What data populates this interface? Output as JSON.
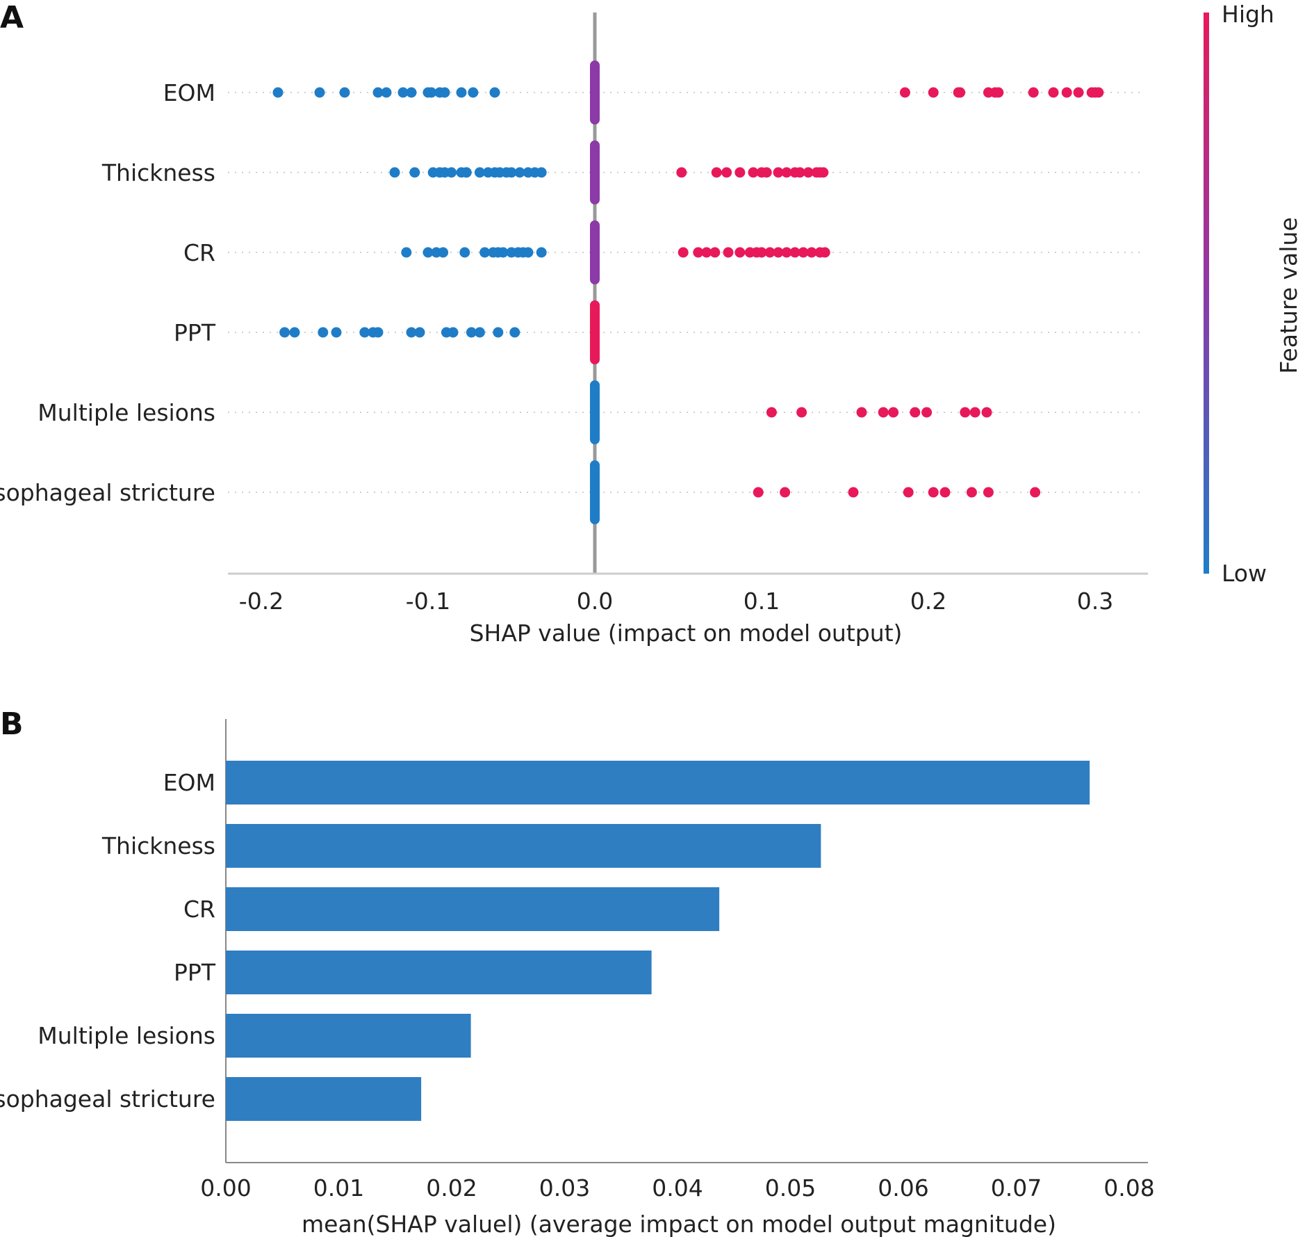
{
  "chart_data": [
    {
      "panel": "A",
      "type": "scatter",
      "subtype": "shap-beeswarm",
      "xlabel": "SHAP value (impact on model output)",
      "xlim": [
        -0.2,
        0.3
      ],
      "xticks": [
        "-0.2",
        "-0.1",
        "0.0",
        "0.1",
        "0.2",
        "0.3"
      ],
      "xtick_values": [
        -0.2,
        -0.1,
        0.0,
        0.1,
        0.2,
        0.3
      ],
      "colorbar": {
        "high_label": "High",
        "low_label": "Low",
        "title": "Feature value",
        "high_color": "#e8195a",
        "low_color": "#1f7dc8",
        "mid_color": "#8b3aa8"
      },
      "features": [
        {
          "name": "EOM",
          "zero_color": "mid",
          "low_points": [
            -0.19,
            -0.165,
            -0.15,
            -0.13,
            -0.125,
            -0.115,
            -0.11,
            -0.1,
            -0.098,
            -0.093,
            -0.09,
            -0.08,
            -0.073,
            -0.06
          ],
          "high_points": [
            0.186,
            0.203,
            0.218,
            0.219,
            0.236,
            0.24,
            0.242,
            0.263,
            0.275,
            0.283,
            0.29,
            0.298,
            0.3,
            0.302
          ]
        },
        {
          "name": "Thickness",
          "zero_color": "mid",
          "low_points": [
            -0.12,
            -0.108,
            -0.097,
            -0.093,
            -0.09,
            -0.086,
            -0.08,
            -0.077,
            -0.077,
            -0.069,
            -0.064,
            -0.06,
            -0.057,
            -0.053,
            -0.05,
            -0.045,
            -0.04,
            -0.036,
            -0.032
          ],
          "high_points": [
            0.052,
            0.073,
            0.079,
            0.087,
            0.095,
            0.1,
            0.103,
            0.11,
            0.115,
            0.12,
            0.123,
            0.128,
            0.133,
            0.135,
            0.137
          ]
        },
        {
          "name": "CR",
          "zero_color": "mid",
          "low_points": [
            -0.113,
            -0.1,
            -0.095,
            -0.091,
            -0.078,
            -0.066,
            -0.061,
            -0.058,
            -0.055,
            -0.05,
            -0.046,
            -0.043,
            -0.04,
            -0.032
          ],
          "high_points": [
            0.053,
            0.062,
            0.067,
            0.072,
            0.08,
            0.087,
            0.093,
            0.097,
            0.1,
            0.105,
            0.11,
            0.115,
            0.12,
            0.125,
            0.13,
            0.135,
            0.138
          ]
        },
        {
          "name": "PPT",
          "zero_color": "high",
          "low_points": [
            -0.186,
            -0.18,
            -0.163,
            -0.155,
            -0.138,
            -0.133,
            -0.13,
            -0.11,
            -0.105,
            -0.089,
            -0.085,
            -0.074,
            -0.069,
            -0.058,
            -0.048
          ],
          "high_points": []
        },
        {
          "name": "Multiple lesions",
          "zero_color": "low",
          "low_points": [],
          "high_points": [
            0.106,
            0.124,
            0.16,
            0.173,
            0.179,
            0.192,
            0.199,
            0.222,
            0.228,
            0.235
          ]
        },
        {
          "name": "Esophageal stricture",
          "zero_color": "low",
          "low_points": [],
          "high_points": [
            0.098,
            0.114,
            0.155,
            0.188,
            0.203,
            0.21,
            0.226,
            0.236,
            0.264
          ]
        }
      ]
    },
    {
      "panel": "B",
      "type": "bar",
      "orientation": "horizontal",
      "xlabel": "mean(SHAP valuel) (average impact on model output magnitude)",
      "xlim": [
        0,
        0.08
      ],
      "xticks": [
        "0.00",
        "0.01",
        "0.02",
        "0.03",
        "0.04",
        "0.05",
        "0.06",
        "0.07",
        "0.08"
      ],
      "xtick_values": [
        0,
        0.01,
        0.02,
        0.03,
        0.04,
        0.05,
        0.06,
        0.07,
        0.08
      ],
      "categories": [
        "EOM",
        "Thickness",
        "CR",
        "PPT",
        "Multiple lesions",
        "Esophageal stricture"
      ],
      "values": [
        0.0765,
        0.0527,
        0.0437,
        0.0377,
        0.0217,
        0.0173
      ],
      "bar_color": "#2f7ec2"
    }
  ]
}
